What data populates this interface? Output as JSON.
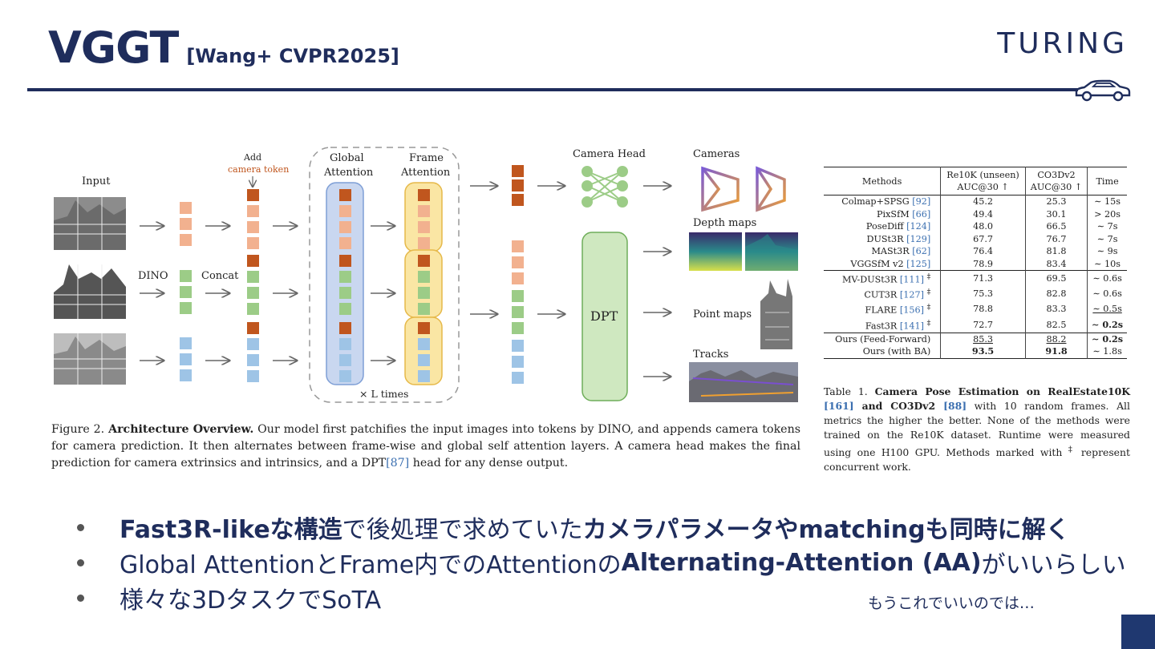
{
  "slide": {
    "title": "VGGT",
    "subtitle": "[Wang+ CVPR2025]",
    "logo_text": "TURING",
    "accent_color": "#1f2d5c",
    "icon": "car-icon"
  },
  "figure": {
    "labels": {
      "input": "Input",
      "dino": "DINO",
      "concat": "Concat",
      "add": "Add",
      "camera_token": "camera token",
      "global_attention_1": "Global",
      "global_attention_2": "Attention",
      "frame_attention_1": "Frame",
      "frame_attention_2": "Attention",
      "times": "× L times",
      "camera_head": "Camera Head",
      "dpt": "DPT",
      "cameras": "Cameras",
      "depth_maps": "Depth maps",
      "point_maps": "Point maps",
      "tracks": "Tracks"
    },
    "colors": {
      "camera_token": "#c0561e",
      "frame1": "#f2b18f",
      "frame2": "#9ccc87",
      "frame3": "#9ec4e6",
      "global_box": "#c9d7f0",
      "frame_box": "#fae6a4",
      "dpt_box": "#cfe8c0"
    },
    "caption": {
      "prefix": "Figure 2. ",
      "bold": "Architecture Overview.",
      "text_a": " Our model first patchifies the input images into tokens by DINO, and appends camera tokens for camera prediction. It then alternates between frame-wise and global self attention layers. A camera head makes the final prediction for camera extrinsics and intrinsics, and a DPT",
      "ref": "[87]",
      "text_b": " head for any dense output."
    }
  },
  "table": {
    "headers": {
      "methods": "Methods",
      "re10k_1": "Re10K (unseen)",
      "re10k_2": "AUC@30 ↑",
      "co3d_1": "CO3Dv2",
      "co3d_2": "AUC@30 ↑",
      "time": "Time"
    },
    "groups": [
      [
        {
          "method": "Colmap+SPSG",
          "ref": "[92]",
          "re10k": "45.2",
          "co3d": "25.3",
          "time": "∼ 15s"
        },
        {
          "method": "PixSfM",
          "ref": "[66]",
          "re10k": "49.4",
          "co3d": "30.1",
          "time": "> 20s"
        },
        {
          "method": "PoseDiff",
          "ref": "[124]",
          "re10k": "48.0",
          "co3d": "66.5",
          "time": "∼ 7s"
        },
        {
          "method": "DUSt3R",
          "ref": "[129]",
          "re10k": "67.7",
          "co3d": "76.7",
          "time": "∼ 7s"
        },
        {
          "method": "MASt3R",
          "ref": "[62]",
          "re10k": "76.4",
          "co3d": "81.8",
          "time": "∼ 9s"
        },
        {
          "method": "VGGSfM v2",
          "ref": "[125]",
          "re10k": "78.9",
          "co3d": "83.4",
          "time": "∼ 10s"
        }
      ],
      [
        {
          "method": "MV-DUSt3R",
          "ref": "[111]",
          "dag": "‡",
          "re10k": "71.3",
          "co3d": "69.5",
          "time": "∼ 0.6s"
        },
        {
          "method": "CUT3R",
          "ref": "[127]",
          "dag": "‡",
          "re10k": "75.3",
          "co3d": "82.8",
          "time": "∼ 0.6s"
        },
        {
          "method": "FLARE",
          "ref": "[156]",
          "dag": "‡",
          "re10k": "78.8",
          "co3d": "83.3",
          "time": "∼ 0.5s"
        },
        {
          "method": "Fast3R",
          "ref": "[141]",
          "dag": "‡",
          "re10k": "72.7",
          "co3d": "82.5",
          "time": "∼ 0.2s"
        }
      ],
      [
        {
          "method": "Ours (Feed-Forward)",
          "ref": "",
          "re10k": "85.3",
          "co3d": "88.2",
          "time": "∼ 0.2s"
        },
        {
          "method": "Ours (with BA)",
          "ref": "",
          "re10k": "93.5",
          "co3d": "91.8",
          "time": "∼ 1.8s"
        }
      ]
    ],
    "caption": {
      "prefix": "Table 1. ",
      "bold_a": "Camera Pose Estimation on RealEstate10K ",
      "ref_a": "[161]",
      "bold_b": " and CO3Dv2 ",
      "ref_b": "[88]",
      "text": " with 10 random frames. All metrics the higher the better. None of the methods were trained on the Re10K dataset. Runtime were measured using one H100 GPU. Methods marked with ",
      "dag": "‡",
      "text_end": " represent concurrent work."
    }
  },
  "bullets": {
    "b1_bold1": "Fast3R-likeな構造",
    "b1_text": "で後処理で求めていた",
    "b1_bold2": "カメラパラメータやmatchingも同時に解く",
    "b2_text1": "Global AttentionとFrame内でのAttentionの",
    "b2_bold": "Alternating-Attention (AA)",
    "b2_text2": " がいいらしい",
    "b3_text": "様々な3DタスクでSoTA",
    "note": "もうこれでいいのでは…"
  }
}
